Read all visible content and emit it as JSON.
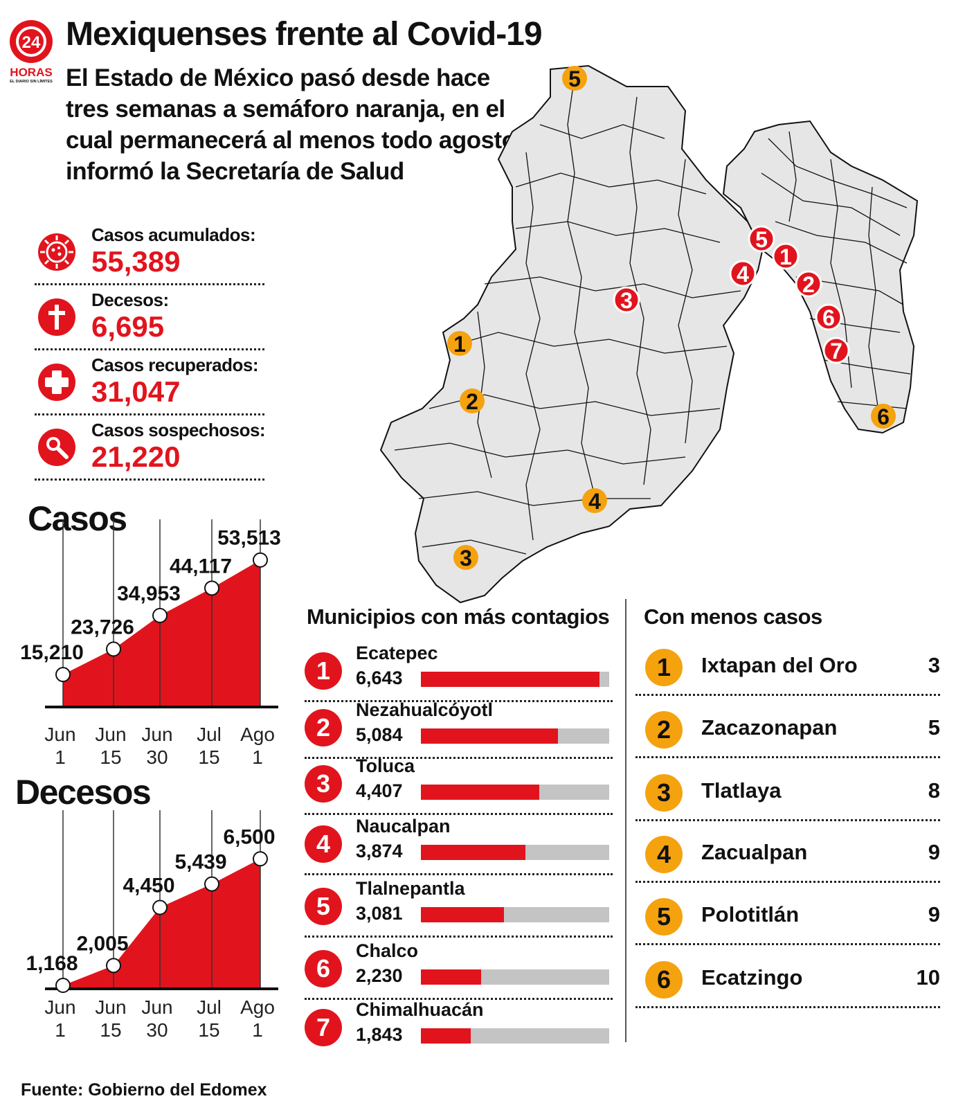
{
  "header": {
    "logo_number": "24",
    "logo_word": "HORAS",
    "logo_tagline": "EL DIARIO SIN LÍMITES",
    "title": "Mexiquenses frente al Covid-19",
    "subtitle": "El Estado de México pasó desde hace tres semanas a semáforo naranja, en el cual permanecerá al menos todo agosto, informó la Secretaría de Salud"
  },
  "stats": [
    {
      "label": "Casos acumulados:",
      "value": "55,389",
      "icon": "virus-icon"
    },
    {
      "label": "Decesos:",
      "value": "6,695",
      "icon": "cross-icon"
    },
    {
      "label": "Casos recuperados:",
      "value": "31,047",
      "icon": "medical-cross-icon"
    },
    {
      "label": "Casos sospechosos:",
      "value": "21,220",
      "icon": "magnifier-icon"
    }
  ],
  "colors": {
    "red": "#e1141d",
    "orange": "#f5a20f",
    "map_fill": "#e6e6e6",
    "bar_track": "#c4c4c4"
  },
  "chart_data": [
    {
      "type": "area",
      "title": "Casos",
      "categories": [
        "Jun 1",
        "Jun 15",
        "Jun 30",
        "Jul 15",
        "Ago 1"
      ],
      "values": [
        15210,
        23726,
        34953,
        44117,
        53513
      ],
      "labels": [
        "15,210",
        "23,726",
        "34,953",
        "44,117",
        "53,513"
      ],
      "ylim": [
        12000,
        56000
      ]
    },
    {
      "type": "area",
      "title": "Decesos",
      "categories": [
        "Jun 1",
        "Jun 15",
        "Jun 30",
        "Jul 15",
        "Ago 1"
      ],
      "values": [
        1168,
        2005,
        4450,
        5439,
        6500
      ],
      "labels": [
        "1,168",
        "2,005",
        "4,450",
        "5,439",
        "6,500"
      ],
      "ylim": [
        1168,
        6800
      ]
    },
    {
      "type": "bar",
      "title": "Municipios con más contagios",
      "categories": [
        "Ecatepec",
        "Nezahualcóyotl",
        "Toluca",
        "Naucalpan",
        "Tlalnepantla",
        "Chalco",
        "Chimalhuacán"
      ],
      "values": [
        6643,
        5084,
        4407,
        3874,
        3081,
        2230,
        1843
      ],
      "labels": [
        "6,643",
        "5,084",
        "4,407",
        "3,874",
        "3,081",
        "2,230",
        "1,843"
      ],
      "xlim": [
        0,
        7000
      ]
    }
  ],
  "lists": {
    "top_title": "Municipios con más contagios",
    "low_title": "Con menos casos",
    "low": [
      {
        "rank": "1",
        "name": "Ixtapan del Oro",
        "count": "3"
      },
      {
        "rank": "2",
        "name": "Zacazonapan",
        "count": "5"
      },
      {
        "rank": "3",
        "name": "Tlatlaya",
        "count": "8"
      },
      {
        "rank": "4",
        "name": "Zacualpan",
        "count": "9"
      },
      {
        "rank": "5",
        "name": "Polotitlán",
        "count": "9"
      },
      {
        "rank": "6",
        "name": "Ecatzingo",
        "count": "10"
      }
    ]
  },
  "map": {
    "red_markers": [
      "1",
      "2",
      "3",
      "4",
      "5",
      "6",
      "7"
    ],
    "orange_markers": [
      "1",
      "2",
      "3",
      "4",
      "5",
      "6"
    ]
  },
  "source": "Fuente: Gobierno del Edomex"
}
